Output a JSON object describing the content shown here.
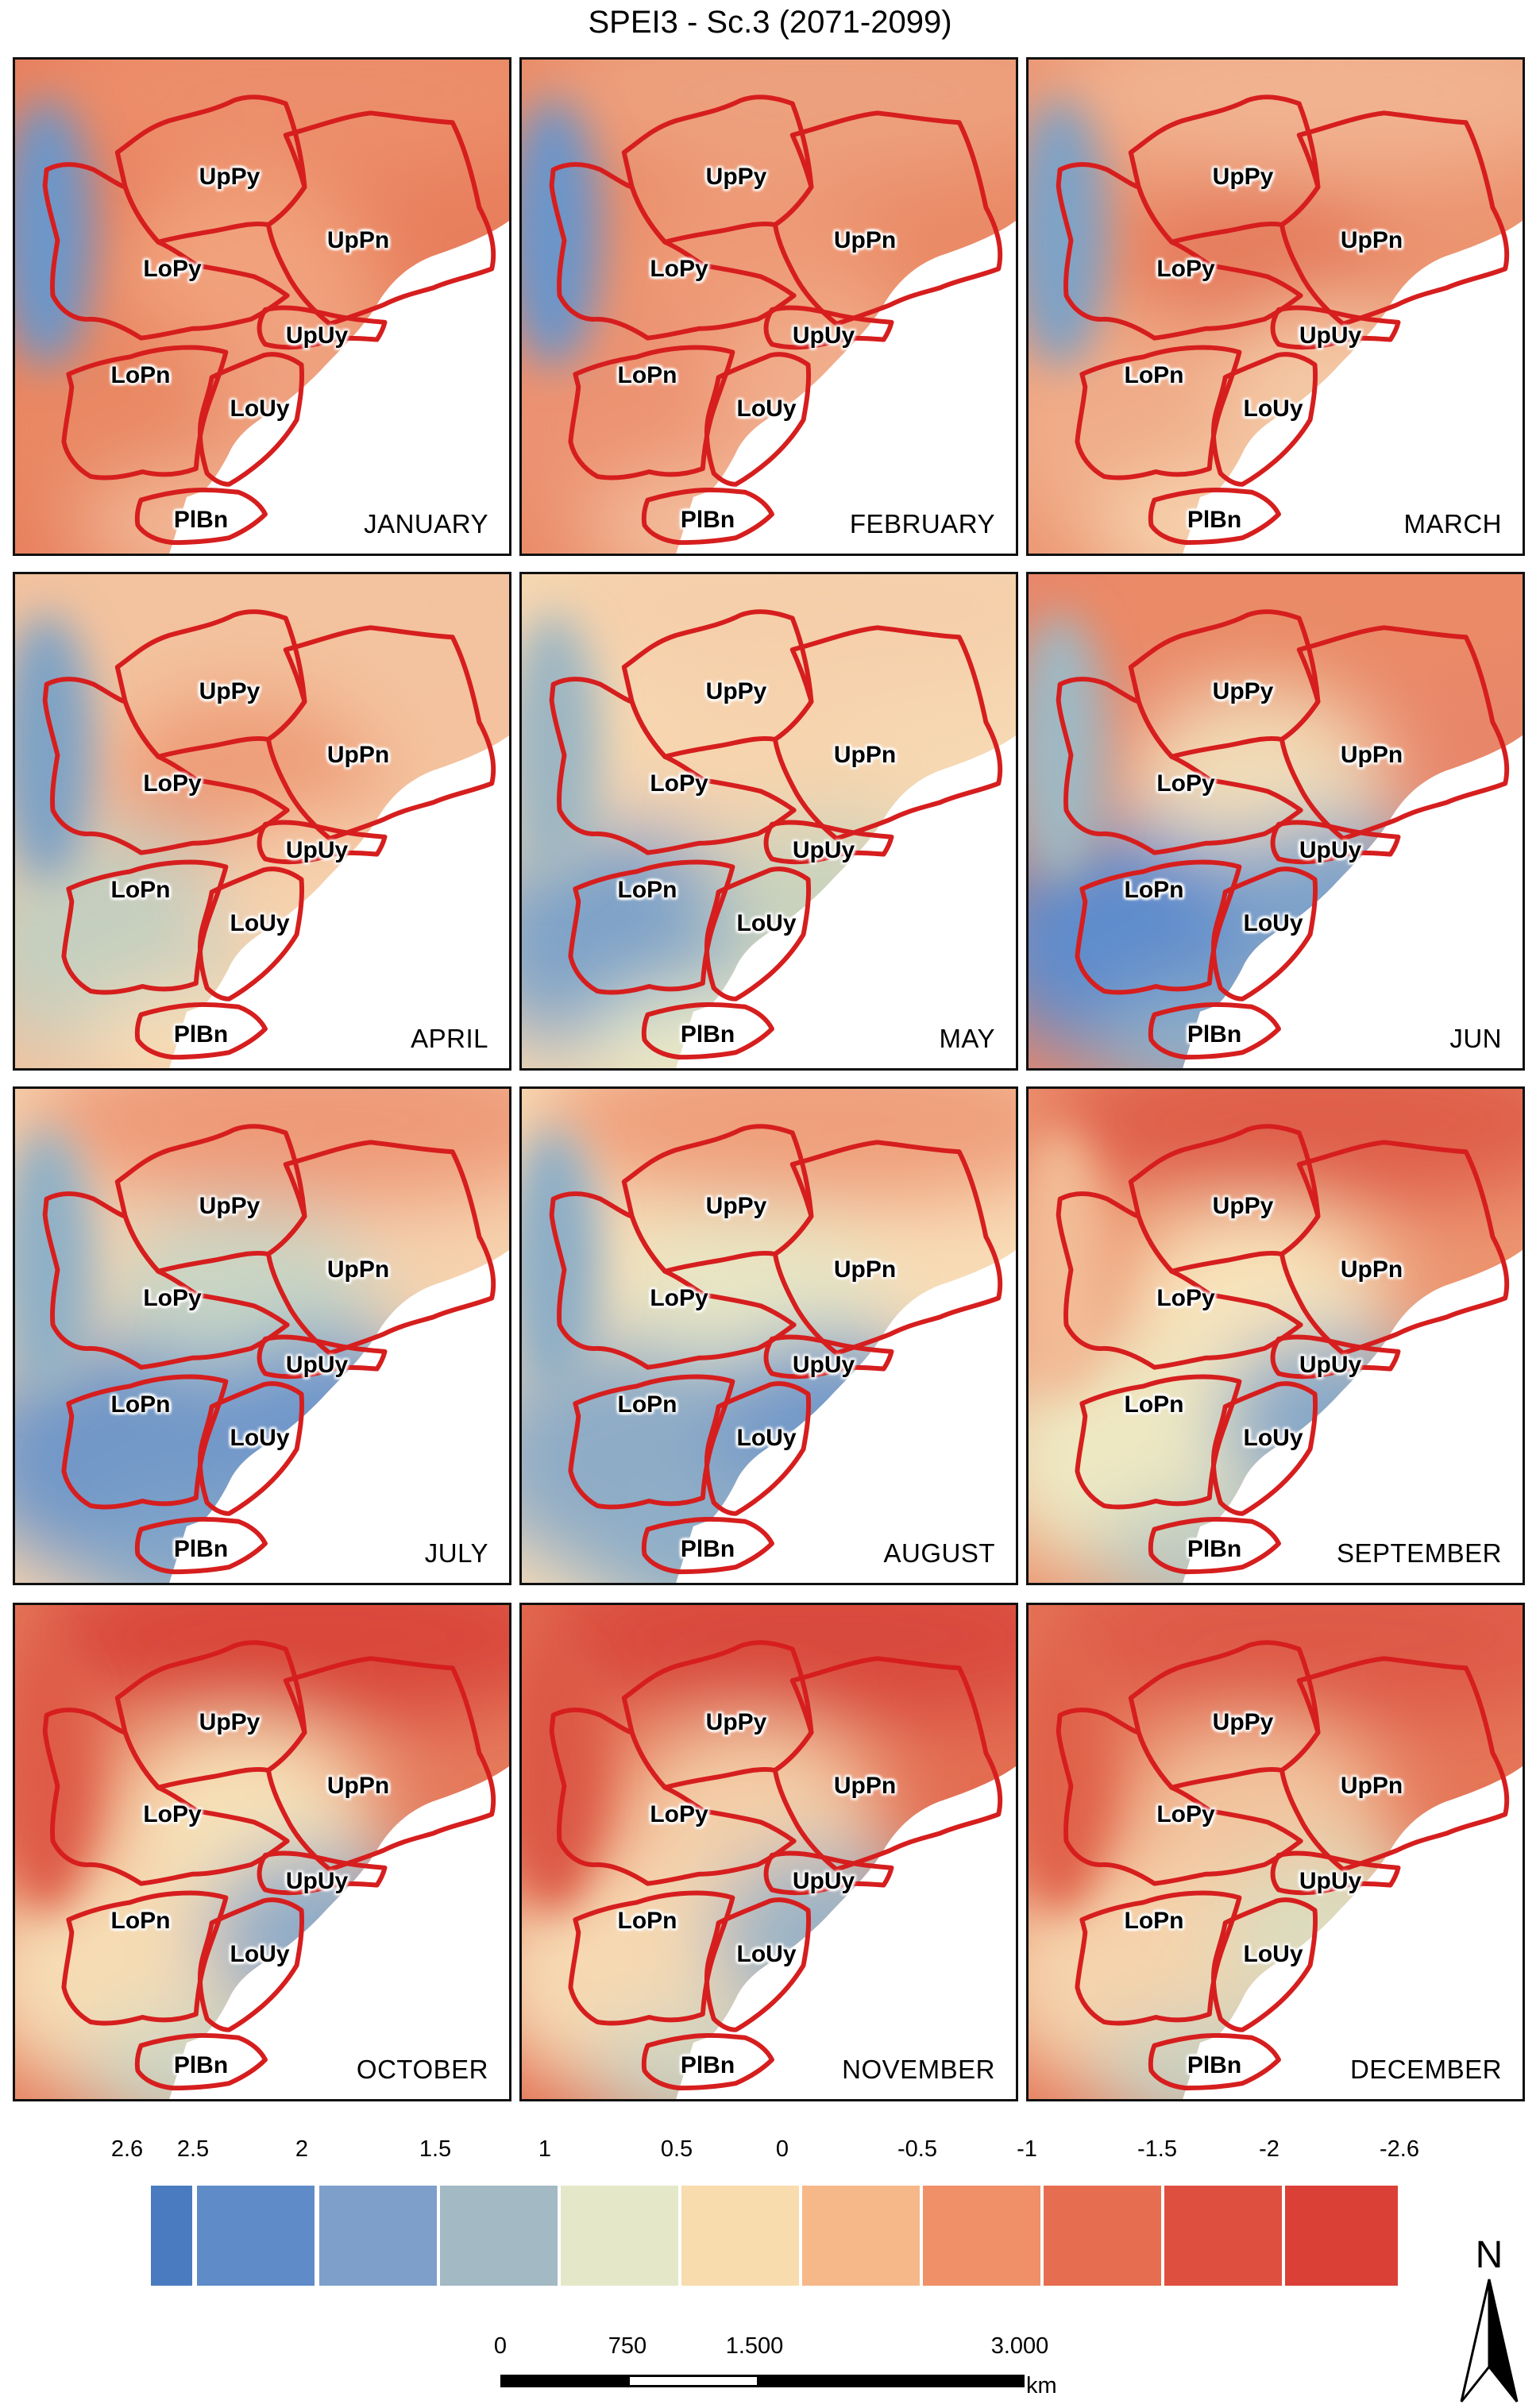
{
  "title": "SPEI3 - Sc.3 (2071-2099)",
  "basins": [
    {
      "id": "UpPy",
      "label": "UpPy"
    },
    {
      "id": "UpPn",
      "label": "UpPn"
    },
    {
      "id": "LoPy",
      "label": "LoPy"
    },
    {
      "id": "UpUy",
      "label": "UpUy"
    },
    {
      "id": "LoPn",
      "label": "LoPn"
    },
    {
      "id": "LoUy",
      "label": "LoUy"
    },
    {
      "id": "PlBn",
      "label": "PlBn"
    }
  ],
  "panels": [
    {
      "month": "JANUARY",
      "palette": {
        "base": "#e87e5c",
        "north": "#ec8e6a",
        "west": "#6d96c8",
        "center": "#f1a27c",
        "southwest": "#e98864",
        "southeast": "#efa07e",
        "coast": "#f2b896"
      }
    },
    {
      "month": "FEBRUARY",
      "palette": {
        "base": "#ea8a66",
        "north": "#eda07e",
        "west": "#6c95c9",
        "center": "#ee9a76",
        "southwest": "#ec9372",
        "southeast": "#f1ad8c",
        "coast": "#f3be9c"
      }
    },
    {
      "month": "MARCH",
      "palette": {
        "base": "#ec9470",
        "north": "#f1b290",
        "west": "#7ea2c6",
        "center": "#e57b5c",
        "southwest": "#f0ac88",
        "southeast": "#f4c8a4",
        "coast": "#f6d3ae"
      }
    },
    {
      "month": "APRIL",
      "palette": {
        "base": "#f4c29e",
        "north": "#f3c29e",
        "west": "#7fa3c5",
        "center": "#ee9c78",
        "southwest": "#c5cfbf",
        "southeast": "#f6d2ae",
        "coast": "#f8dcb6"
      }
    },
    {
      "month": "MAY",
      "palette": {
        "base": "#f6d8b2",
        "north": "#f5cfaa",
        "west": "#9db6c2",
        "center": "#f6d4ae",
        "southwest": "#7fa3c8",
        "southeast": "#c9d3bd",
        "coast": "#e7e8c8"
      }
    },
    {
      "month": "JUN",
      "palette": {
        "base": "#e8866a",
        "north": "#ea8a66",
        "west": "#9fb8c2",
        "center": "#f2ddb8",
        "southwest": "#5f8ccc",
        "southeast": "#7ca2ca",
        "coast": "#8eaec8"
      }
    },
    {
      "month": "JULY",
      "palette": {
        "base": "#f6d2ae",
        "north": "#ee9a78",
        "west": "#90b0c6",
        "center": "#c9d6c4",
        "southwest": "#7298c8",
        "southeast": "#6f97cb",
        "coast": "#82a6c9"
      }
    },
    {
      "month": "AUGUST",
      "palette": {
        "base": "#f8dcb6",
        "north": "#ef9f7c",
        "west": "#8eaec6",
        "center": "#e8e6c4",
        "southwest": "#8facc6",
        "southeast": "#7299c9",
        "coast": "#8eaec7"
      }
    },
    {
      "month": "SEPTEMBER",
      "palette": {
        "base": "#ec9470",
        "north": "#df5e48",
        "west": "#f2bc96",
        "center": "#f8e4bc",
        "southwest": "#eee8c2",
        "southeast": "#86a8c8",
        "coast": "#b9c9c2"
      }
    },
    {
      "month": "OCTOBER",
      "palette": {
        "base": "#e57a5c",
        "north": "#d9463a",
        "west": "#de5c46",
        "center": "#f7e1b8",
        "southwest": "#f6dcb4",
        "southeast": "#8facc8",
        "coast": "#c9d5c4"
      }
    },
    {
      "month": "NOVEMBER",
      "palette": {
        "base": "#e36e52",
        "north": "#d94a3c",
        "west": "#dc5844",
        "center": "#f4cfa8",
        "southwest": "#f6d9b2",
        "southeast": "#9ab4c6",
        "coast": "#c9d3c2"
      }
    },
    {
      "month": "DECEMBER",
      "palette": {
        "base": "#e57658",
        "north": "#de5a46",
        "west": "#e06248",
        "center": "#f2c49e",
        "southwest": "#f5d3ac",
        "southeast": "#dcdcbe",
        "coast": "#c6d1c2"
      }
    }
  ],
  "legend": {
    "ticks": [
      "2.6",
      "2.5",
      "2",
      "1.5",
      "1",
      "0.5",
      "0",
      "-0.5",
      "-1",
      "-1.5",
      "-2",
      "-2.6"
    ],
    "colors": [
      "#4a7bc0",
      "#5f8cc8",
      "#7d9fca",
      "#a3b9c4",
      "#e4e8c8",
      "#f9dcae",
      "#f6b889",
      "#ef9068",
      "#e66d50",
      "#df4f40",
      "#db4037"
    ]
  },
  "scalebar": {
    "labels": [
      "0",
      "750",
      "1.500",
      "3.000"
    ],
    "unit": "km"
  },
  "north_arrow": {
    "letter": "N"
  }
}
